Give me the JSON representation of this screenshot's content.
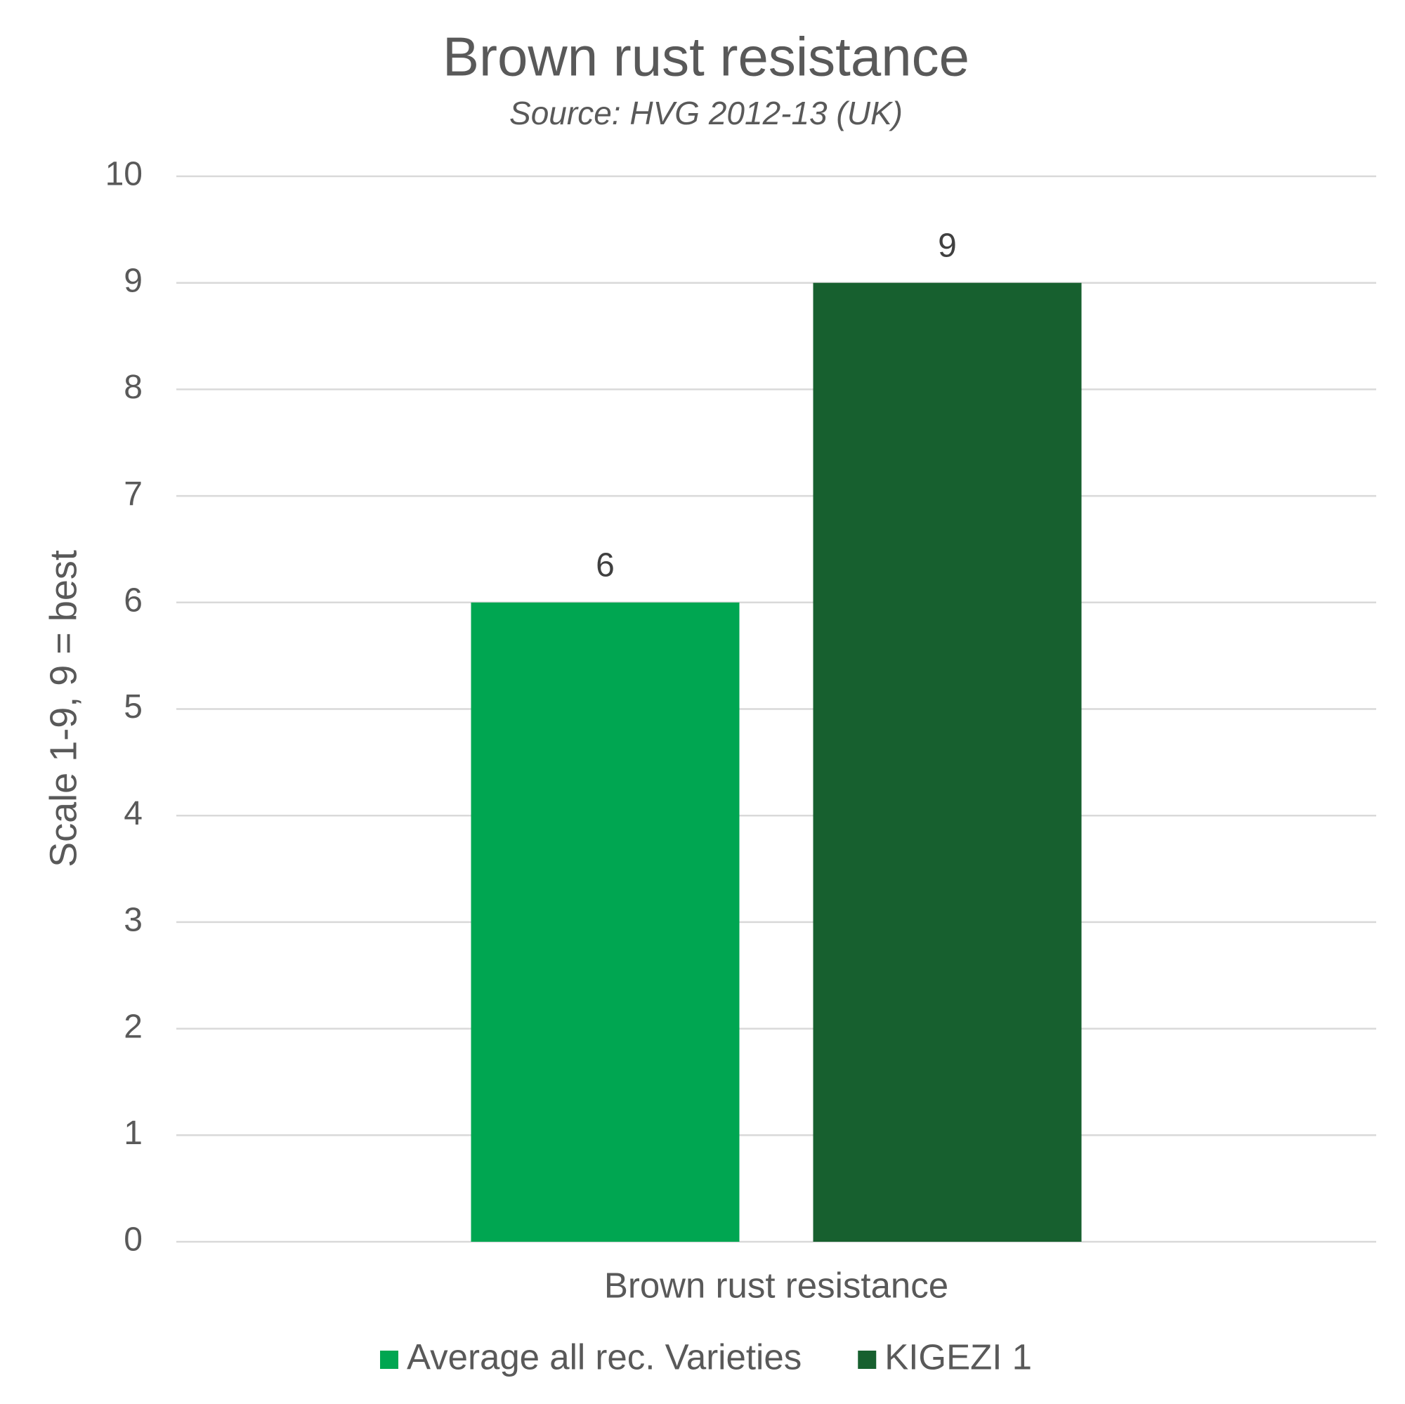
{
  "chart_data": {
    "type": "bar",
    "title": "Brown rust resistance",
    "subtitle": "Source: HVG 2012-13 (UK)",
    "y_label": "Scale 1-9, 9 = best",
    "categories": [
      "Brown rust resistance"
    ],
    "series": [
      {
        "name": "Average all rec. Varieties",
        "color": "#00a651",
        "values": [
          6
        ]
      },
      {
        "name": "KIGEZI 1",
        "color": "#17602f",
        "values": [
          9
        ]
      }
    ],
    "ylim": [
      0,
      10
    ],
    "yticks": [
      0,
      1,
      2,
      3,
      4,
      5,
      6,
      7,
      8,
      9,
      10
    ],
    "grid": true,
    "legend": "bottom"
  }
}
